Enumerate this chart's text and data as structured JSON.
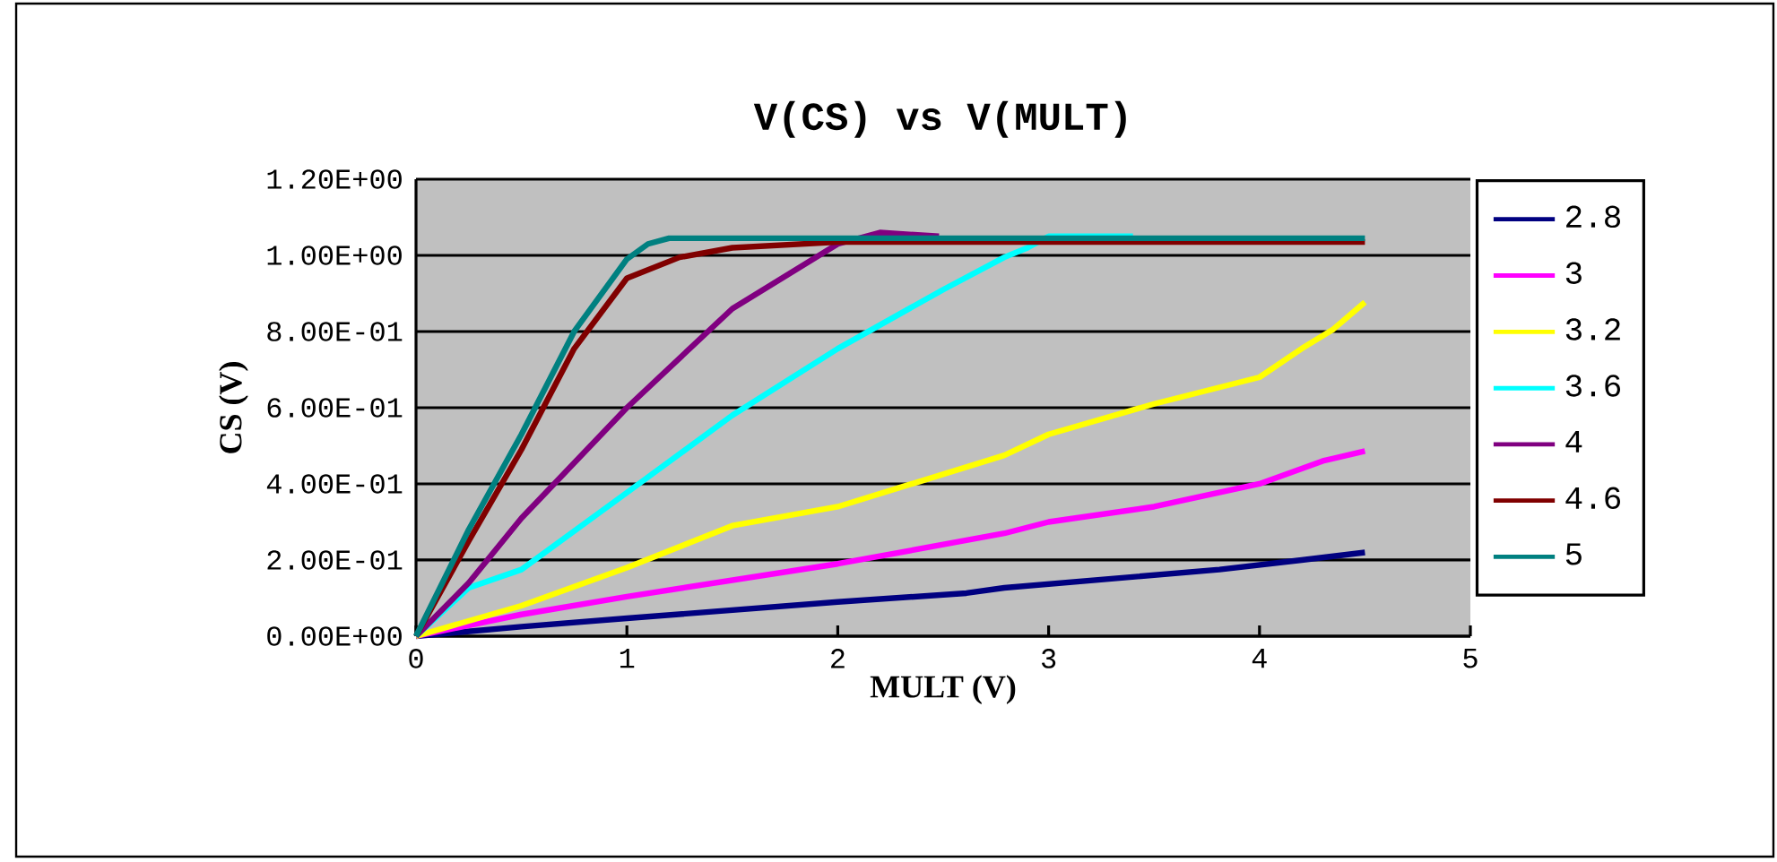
{
  "chart_data": {
    "type": "line",
    "title": "V(CS) vs V(MULT)",
    "xlabel": "MULT (V)",
    "ylabel": "CS (V)",
    "xlim": [
      0,
      5
    ],
    "xticks": [
      0,
      1,
      2,
      3,
      4,
      5
    ],
    "ylim": [
      0,
      1.2
    ],
    "yticks": [
      {
        "value": 0,
        "label": "0.00E+00"
      },
      {
        "value": 0.2,
        "label": "2.00E-01"
      },
      {
        "value": 0.4,
        "label": "4.00E-01"
      },
      {
        "value": 0.6,
        "label": "6.00E-01"
      },
      {
        "value": 0.8,
        "label": "8.00E-01"
      },
      {
        "value": 1.0,
        "label": "1.00E+00"
      },
      {
        "value": 1.2,
        "label": "1.20E+00"
      }
    ],
    "grid": "y",
    "legend": "right",
    "marker": "none",
    "line_style": "solid",
    "series": [
      {
        "name": "2.8",
        "color": "#000080",
        "x": [
          0,
          0.5,
          1,
          2,
          2.61,
          2.79,
          3.81,
          4.2,
          4.5
        ],
        "values": [
          0,
          0.025,
          0.047,
          0.09,
          0.113,
          0.127,
          0.175,
          0.2,
          0.22
        ]
      },
      {
        "name": "3",
        "color": "#ff00ff",
        "x": [
          0,
          0.5,
          1,
          2,
          2.79,
          3,
          3.5,
          4,
          4.3,
          4.5
        ],
        "values": [
          0,
          0.057,
          0.104,
          0.19,
          0.27,
          0.3,
          0.34,
          0.4,
          0.46,
          0.486
        ]
      },
      {
        "name": "3.2",
        "color": "#ffff00",
        "x": [
          0,
          0.5,
          1,
          1.5,
          2,
          2.79,
          3,
          3.5,
          4,
          4.2,
          4.35,
          4.5
        ],
        "values": [
          0,
          0.08,
          0.18,
          0.29,
          0.34,
          0.475,
          0.53,
          0.61,
          0.68,
          0.755,
          0.806,
          0.877
        ]
      },
      {
        "name": "3.6",
        "color": "#00ffff",
        "x": [
          0,
          0.25,
          0.5,
          1,
          1.5,
          2,
          2.5,
          2.79,
          2.9,
          3.0,
          3.4
        ],
        "values": [
          0,
          0.127,
          0.175,
          0.377,
          0.58,
          0.755,
          0.91,
          0.995,
          1.02,
          1.05,
          1.05
        ]
      },
      {
        "name": "4",
        "color": "#800080",
        "x": [
          0,
          0.25,
          0.5,
          1,
          1.5,
          2,
          2.2,
          2.48
        ],
        "values": [
          0,
          0.14,
          0.31,
          0.6,
          0.86,
          1.03,
          1.06,
          1.05
        ]
      },
      {
        "name": "4.6",
        "color": "#800000",
        "x": [
          0,
          0.25,
          0.5,
          0.75,
          1,
          1.25,
          1.5,
          2,
          4.5
        ],
        "values": [
          0,
          0.25,
          0.49,
          0.755,
          0.94,
          0.995,
          1.02,
          1.035,
          1.035
        ]
      },
      {
        "name": "5",
        "color": "#008080",
        "x": [
          0,
          0.25,
          0.5,
          0.75,
          1,
          1.1,
          1.2,
          4.5
        ],
        "values": [
          0,
          0.28,
          0.53,
          0.8,
          0.99,
          1.03,
          1.045,
          1.045
        ]
      }
    ]
  }
}
